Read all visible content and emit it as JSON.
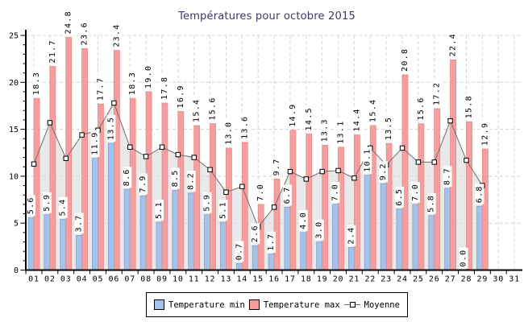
{
  "chart_data": {
    "type": "bar",
    "title": "Températures pour octobre 2015",
    "categories": [
      "01",
      "02",
      "03",
      "04",
      "05",
      "06",
      "07",
      "08",
      "09",
      "10",
      "11",
      "12",
      "13",
      "14",
      "15",
      "16",
      "17",
      "18",
      "19",
      "20",
      "21",
      "22",
      "23",
      "24",
      "25",
      "26",
      "27",
      "28",
      "29",
      "30",
      "31"
    ],
    "series": [
      {
        "name": "Temperature min",
        "type": "bar",
        "values": [
          5.6,
          5.9,
          5.4,
          3.7,
          11.9,
          13.5,
          8.6,
          7.9,
          5.1,
          8.5,
          8.2,
          5.9,
          5.1,
          0.7,
          2.6,
          1.7,
          6.7,
          4.0,
          3.0,
          7.0,
          2.4,
          10.1,
          9.2,
          6.5,
          7.0,
          5.8,
          8.7,
          0.0,
          6.8
        ]
      },
      {
        "name": "Temperature max",
        "type": "bar",
        "values": [
          18.3,
          21.7,
          24.8,
          23.6,
          17.7,
          23.4,
          18.3,
          19.0,
          17.8,
          16.9,
          15.4,
          15.6,
          13.0,
          13.6,
          7.0,
          9.7,
          14.9,
          14.5,
          13.3,
          13.1,
          14.4,
          15.4,
          13.5,
          20.8,
          15.6,
          17.2,
          22.4,
          15.8,
          12.9
        ]
      },
      {
        "name": "Moyenne",
        "type": "line",
        "values": [
          11.3,
          15.7,
          11.9,
          14.4,
          14.9,
          17.8,
          13.1,
          12.1,
          13.1,
          12.3,
          12.0,
          10.7,
          8.3,
          8.9,
          4.6,
          6.7,
          10.5,
          9.7,
          10.5,
          10.6,
          9.8,
          13.0,
          11.2,
          13.0,
          11.5,
          11.5,
          15.9,
          11.7,
          9.0
        ]
      }
    ],
    "ylim": [
      0,
      25
    ],
    "yticks": [
      0,
      5,
      10,
      15,
      20,
      25
    ],
    "grid": true,
    "value_labels": "one decimal, rotated 90°, on both bar series",
    "legend_position": "bottom-center",
    "colors": {
      "min_bar_fill": "#a5c2e9",
      "min_bar_border": "#7e9cd0",
      "max_bar_fill": "#f79d9d",
      "max_bar_border": "#de8b8b",
      "moyenne_line": "#6e6e6e",
      "moyenne_marker_fill": "#ffffff",
      "moyenne_marker_border": "#000000",
      "moyenne_area_fill": "#e9e9e9",
      "gridline": "#d4d4d4",
      "axis": "#000000",
      "tick_text": "#000000",
      "title_text": "#3b3b66",
      "label_box": "#ffffff"
    }
  },
  "legend": {
    "min_label": "Temperature min",
    "max_label": "Temperature max",
    "moyenne_label": "Moyenne"
  }
}
